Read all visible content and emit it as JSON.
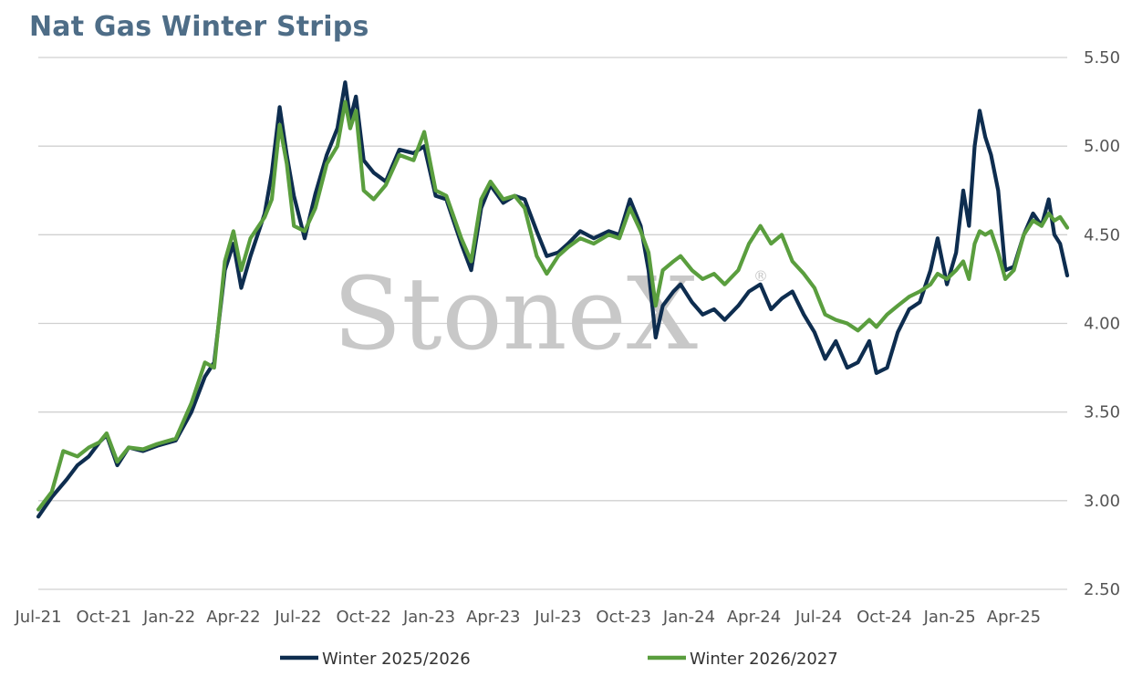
{
  "chart_data": {
    "type": "line",
    "title": "Nat Gas Winter Strips",
    "watermark": "StoneX",
    "watermark_mark": "®",
    "ylim": [
      2.5,
      5.5
    ],
    "yticks": [
      "5.50",
      "5.00",
      "4.50",
      "4.00",
      "3.50",
      "3.00",
      "2.50"
    ],
    "xticks": [
      "Jul-21",
      "Oct-21",
      "Jan-22",
      "Apr-22",
      "Jul-22",
      "Oct-22",
      "Jan-23",
      "Apr-23",
      "Jul-23",
      "Oct-23",
      "Jan-24",
      "Apr-24",
      "Jul-24",
      "Oct-24",
      "Jan-25",
      "Apr-25"
    ],
    "grid": true,
    "legend_position": "bottom",
    "x_range": [
      "2021-07-01",
      "2025-06-15"
    ],
    "series": [
      {
        "name": "Winter 2025/2026",
        "color": "#0e2d4f",
        "points": [
          [
            "2021-07-01",
            2.91
          ],
          [
            "2021-07-20",
            3.02
          ],
          [
            "2021-08-10",
            3.12
          ],
          [
            "2021-08-25",
            3.2
          ],
          [
            "2021-09-10",
            3.25
          ],
          [
            "2021-09-25",
            3.33
          ],
          [
            "2021-10-05",
            3.37
          ],
          [
            "2021-10-20",
            3.2
          ],
          [
            "2021-11-05",
            3.3
          ],
          [
            "2021-11-25",
            3.28
          ],
          [
            "2021-12-15",
            3.31
          ],
          [
            "2022-01-10",
            3.34
          ],
          [
            "2022-02-01",
            3.5
          ],
          [
            "2022-02-20",
            3.7
          ],
          [
            "2022-03-05",
            3.78
          ],
          [
            "2022-03-20",
            4.3
          ],
          [
            "2022-04-01",
            4.45
          ],
          [
            "2022-04-12",
            4.2
          ],
          [
            "2022-04-25",
            4.38
          ],
          [
            "2022-05-15",
            4.62
          ],
          [
            "2022-05-25",
            4.85
          ],
          [
            "2022-06-05",
            5.22
          ],
          [
            "2022-06-15",
            4.95
          ],
          [
            "2022-06-25",
            4.72
          ],
          [
            "2022-07-10",
            4.48
          ],
          [
            "2022-07-25",
            4.73
          ],
          [
            "2022-08-10",
            4.95
          ],
          [
            "2022-08-25",
            5.1
          ],
          [
            "2022-09-05",
            5.36
          ],
          [
            "2022-09-12",
            5.15
          ],
          [
            "2022-09-20",
            5.28
          ],
          [
            "2022-10-01",
            4.92
          ],
          [
            "2022-10-15",
            4.85
          ],
          [
            "2022-11-01",
            4.8
          ],
          [
            "2022-11-20",
            4.98
          ],
          [
            "2022-12-10",
            4.96
          ],
          [
            "2022-12-25",
            5.0
          ],
          [
            "2023-01-10",
            4.72
          ],
          [
            "2023-01-25",
            4.7
          ],
          [
            "2023-02-15",
            4.45
          ],
          [
            "2023-03-01",
            4.3
          ],
          [
            "2023-03-15",
            4.65
          ],
          [
            "2023-03-28",
            4.78
          ],
          [
            "2023-04-15",
            4.68
          ],
          [
            "2023-05-01",
            4.72
          ],
          [
            "2023-05-15",
            4.7
          ],
          [
            "2023-06-01",
            4.52
          ],
          [
            "2023-06-15",
            4.38
          ],
          [
            "2023-07-01",
            4.4
          ],
          [
            "2023-07-15",
            4.45
          ],
          [
            "2023-08-01",
            4.52
          ],
          [
            "2023-08-20",
            4.48
          ],
          [
            "2023-09-10",
            4.52
          ],
          [
            "2023-09-25",
            4.5
          ],
          [
            "2023-10-10",
            4.7
          ],
          [
            "2023-10-25",
            4.55
          ],
          [
            "2023-11-05",
            4.3
          ],
          [
            "2023-11-15",
            3.92
          ],
          [
            "2023-11-25",
            4.1
          ],
          [
            "2023-12-10",
            4.18
          ],
          [
            "2023-12-20",
            4.22
          ],
          [
            "2024-01-05",
            4.12
          ],
          [
            "2024-01-20",
            4.05
          ],
          [
            "2024-02-05",
            4.08
          ],
          [
            "2024-02-20",
            4.02
          ],
          [
            "2024-03-10",
            4.1
          ],
          [
            "2024-03-25",
            4.18
          ],
          [
            "2024-04-10",
            4.22
          ],
          [
            "2024-04-25",
            4.08
          ],
          [
            "2024-05-10",
            4.14
          ],
          [
            "2024-05-25",
            4.18
          ],
          [
            "2024-06-10",
            4.05
          ],
          [
            "2024-06-25",
            3.95
          ],
          [
            "2024-07-10",
            3.8
          ],
          [
            "2024-07-25",
            3.9
          ],
          [
            "2024-08-10",
            3.75
          ],
          [
            "2024-08-25",
            3.78
          ],
          [
            "2024-09-10",
            3.9
          ],
          [
            "2024-09-20",
            3.72
          ],
          [
            "2024-10-05",
            3.75
          ],
          [
            "2024-10-20",
            3.95
          ],
          [
            "2024-11-05",
            4.08
          ],
          [
            "2024-11-20",
            4.12
          ],
          [
            "2024-12-05",
            4.3
          ],
          [
            "2024-12-15",
            4.48
          ],
          [
            "2024-12-28",
            4.22
          ],
          [
            "2025-01-10",
            4.4
          ],
          [
            "2025-01-20",
            4.75
          ],
          [
            "2025-01-28",
            4.55
          ],
          [
            "2025-02-05",
            5.0
          ],
          [
            "2025-02-12",
            5.2
          ],
          [
            "2025-02-20",
            5.05
          ],
          [
            "2025-02-28",
            4.95
          ],
          [
            "2025-03-10",
            4.75
          ],
          [
            "2025-03-20",
            4.3
          ],
          [
            "2025-04-01",
            4.32
          ],
          [
            "2025-04-15",
            4.5
          ],
          [
            "2025-04-28",
            4.62
          ],
          [
            "2025-05-10",
            4.55
          ],
          [
            "2025-05-20",
            4.7
          ],
          [
            "2025-05-28",
            4.5
          ],
          [
            "2025-06-05",
            4.45
          ],
          [
            "2025-06-15",
            4.27
          ]
        ]
      },
      {
        "name": "Winter 2026/2027",
        "color": "#5a9e3e",
        "points": [
          [
            "2021-07-01",
            2.95
          ],
          [
            "2021-07-20",
            3.05
          ],
          [
            "2021-08-05",
            3.28
          ],
          [
            "2021-08-25",
            3.25
          ],
          [
            "2021-09-10",
            3.3
          ],
          [
            "2021-09-25",
            3.33
          ],
          [
            "2021-10-05",
            3.38
          ],
          [
            "2021-10-20",
            3.22
          ],
          [
            "2021-11-05",
            3.3
          ],
          [
            "2021-11-25",
            3.29
          ],
          [
            "2021-12-15",
            3.32
          ],
          [
            "2022-01-10",
            3.35
          ],
          [
            "2022-02-01",
            3.55
          ],
          [
            "2022-02-20",
            3.78
          ],
          [
            "2022-03-05",
            3.75
          ],
          [
            "2022-03-20",
            4.35
          ],
          [
            "2022-04-01",
            4.52
          ],
          [
            "2022-04-12",
            4.3
          ],
          [
            "2022-04-25",
            4.48
          ],
          [
            "2022-05-15",
            4.6
          ],
          [
            "2022-05-25",
            4.7
          ],
          [
            "2022-06-05",
            5.12
          ],
          [
            "2022-06-15",
            4.9
          ],
          [
            "2022-06-25",
            4.55
          ],
          [
            "2022-07-10",
            4.52
          ],
          [
            "2022-07-25",
            4.65
          ],
          [
            "2022-08-10",
            4.9
          ],
          [
            "2022-08-25",
            5.0
          ],
          [
            "2022-09-05",
            5.25
          ],
          [
            "2022-09-12",
            5.1
          ],
          [
            "2022-09-20",
            5.2
          ],
          [
            "2022-10-01",
            4.75
          ],
          [
            "2022-10-15",
            4.7
          ],
          [
            "2022-11-01",
            4.78
          ],
          [
            "2022-11-20",
            4.95
          ],
          [
            "2022-12-10",
            4.92
          ],
          [
            "2022-12-25",
            5.08
          ],
          [
            "2023-01-10",
            4.75
          ],
          [
            "2023-01-25",
            4.72
          ],
          [
            "2023-02-15",
            4.48
          ],
          [
            "2023-03-01",
            4.35
          ],
          [
            "2023-03-15",
            4.7
          ],
          [
            "2023-03-28",
            4.8
          ],
          [
            "2023-04-15",
            4.7
          ],
          [
            "2023-05-01",
            4.72
          ],
          [
            "2023-05-15",
            4.65
          ],
          [
            "2023-06-01",
            4.38
          ],
          [
            "2023-06-15",
            4.28
          ],
          [
            "2023-07-01",
            4.38
          ],
          [
            "2023-07-15",
            4.43
          ],
          [
            "2023-08-01",
            4.48
          ],
          [
            "2023-08-20",
            4.45
          ],
          [
            "2023-09-10",
            4.5
          ],
          [
            "2023-09-25",
            4.48
          ],
          [
            "2023-10-10",
            4.65
          ],
          [
            "2023-10-25",
            4.52
          ],
          [
            "2023-11-05",
            4.4
          ],
          [
            "2023-11-15",
            4.1
          ],
          [
            "2023-11-25",
            4.3
          ],
          [
            "2023-12-10",
            4.35
          ],
          [
            "2023-12-20",
            4.38
          ],
          [
            "2024-01-05",
            4.3
          ],
          [
            "2024-01-20",
            4.25
          ],
          [
            "2024-02-05",
            4.28
          ],
          [
            "2024-02-20",
            4.22
          ],
          [
            "2024-03-10",
            4.3
          ],
          [
            "2024-03-25",
            4.45
          ],
          [
            "2024-04-10",
            4.55
          ],
          [
            "2024-04-25",
            4.45
          ],
          [
            "2024-05-10",
            4.5
          ],
          [
            "2024-05-25",
            4.35
          ],
          [
            "2024-06-10",
            4.28
          ],
          [
            "2024-06-25",
            4.2
          ],
          [
            "2024-07-10",
            4.05
          ],
          [
            "2024-07-25",
            4.02
          ],
          [
            "2024-08-10",
            4.0
          ],
          [
            "2024-08-25",
            3.96
          ],
          [
            "2024-09-10",
            4.02
          ],
          [
            "2024-09-20",
            3.98
          ],
          [
            "2024-10-05",
            4.05
          ],
          [
            "2024-10-20",
            4.1
          ],
          [
            "2024-11-05",
            4.15
          ],
          [
            "2024-11-20",
            4.18
          ],
          [
            "2024-12-05",
            4.22
          ],
          [
            "2024-12-15",
            4.28
          ],
          [
            "2024-12-28",
            4.25
          ],
          [
            "2025-01-10",
            4.3
          ],
          [
            "2025-01-20",
            4.35
          ],
          [
            "2025-01-28",
            4.25
          ],
          [
            "2025-02-05",
            4.45
          ],
          [
            "2025-02-12",
            4.52
          ],
          [
            "2025-02-20",
            4.5
          ],
          [
            "2025-02-28",
            4.52
          ],
          [
            "2025-03-10",
            4.4
          ],
          [
            "2025-03-20",
            4.25
          ],
          [
            "2025-04-01",
            4.3
          ],
          [
            "2025-04-15",
            4.5
          ],
          [
            "2025-04-28",
            4.58
          ],
          [
            "2025-05-10",
            4.55
          ],
          [
            "2025-05-20",
            4.62
          ],
          [
            "2025-05-28",
            4.58
          ],
          [
            "2025-06-05",
            4.6
          ],
          [
            "2025-06-15",
            4.54
          ]
        ]
      }
    ]
  }
}
